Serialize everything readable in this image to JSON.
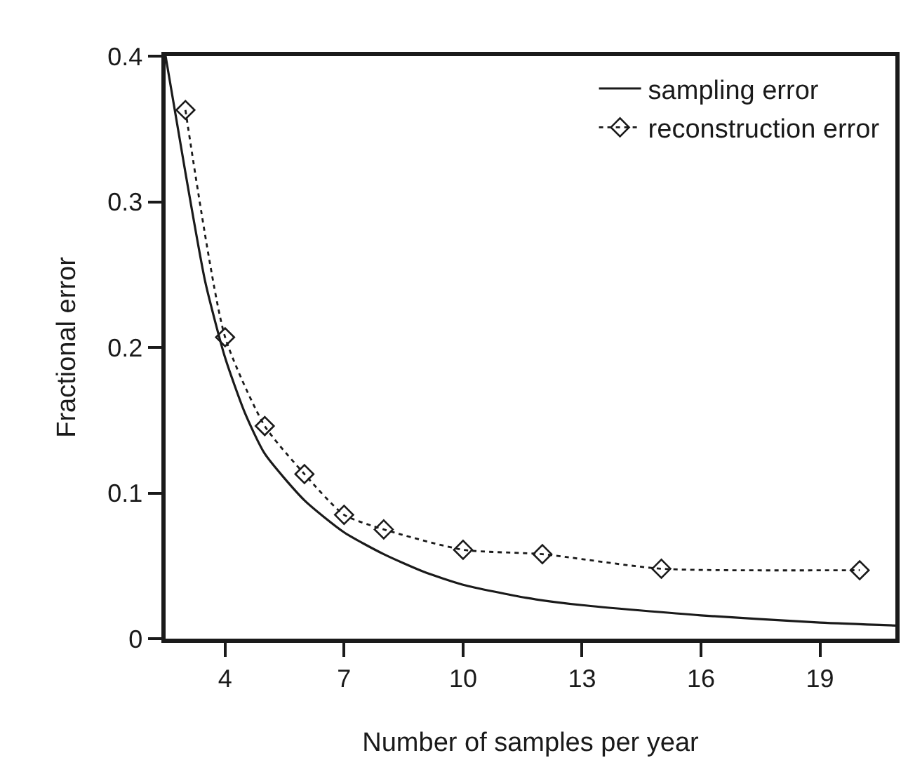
{
  "chart_data": {
    "type": "line",
    "xlabel": "Number of samples per year",
    "ylabel": "Fractional error",
    "xlim": [
      2.5,
      20.9
    ],
    "xticks": [
      4,
      7,
      10,
      13,
      16,
      19
    ],
    "ylim": [
      0,
      0.4
    ],
    "yticks": [
      0,
      0.1,
      0.2,
      0.3,
      0.4
    ],
    "grid": false,
    "legend": "top right",
    "series": [
      {
        "name": "sampling error",
        "color": "#1a1a1a",
        "line_style": "solid",
        "marker": "none",
        "x": [
          2.5,
          3,
          3.5,
          4,
          4.5,
          5,
          6,
          7,
          8,
          9,
          10,
          11.6,
          13,
          16,
          19,
          20.9
        ],
        "values": [
          0.4,
          0.32,
          0.245,
          0.193,
          0.155,
          0.127,
          0.095,
          0.073,
          0.058,
          0.046,
          0.037,
          0.028,
          0.023,
          0.016,
          0.011,
          0.009
        ]
      },
      {
        "name": "reconstruction error",
        "color": "#1a1a1a",
        "line_style": "dotted",
        "marker": "diamond",
        "x": [
          3,
          4,
          5,
          6,
          7,
          8,
          10,
          12,
          15,
          20
        ],
        "values": [
          0.363,
          0.207,
          0.146,
          0.113,
          0.085,
          0.075,
          0.061,
          0.058,
          0.048,
          0.047
        ]
      }
    ]
  }
}
